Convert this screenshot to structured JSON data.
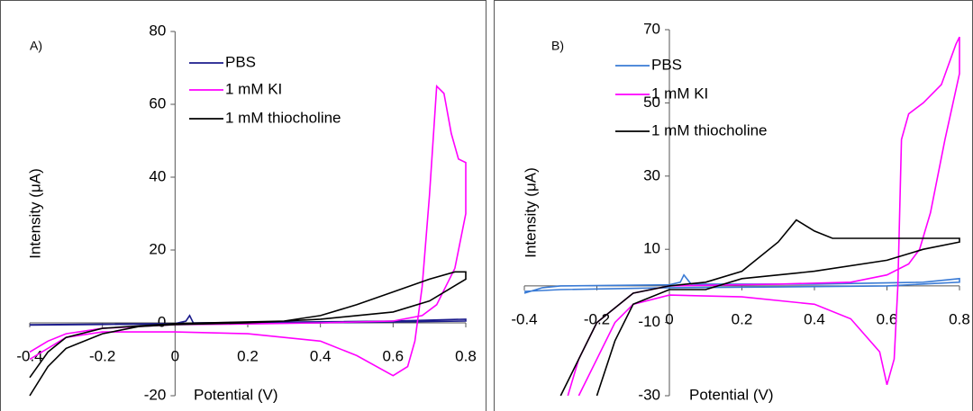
{
  "chart_data": [
    {
      "type": "line",
      "panel_label": "A)",
      "xlabel": "Potential (V)",
      "ylabel": "Intensity (μA)",
      "xlim": [
        -0.4,
        0.8
      ],
      "ylim": [
        -20,
        80
      ],
      "xticks": [
        -0.4,
        -0.2,
        0,
        0.2,
        0.4,
        0.6,
        0.8
      ],
      "yticks": [
        -20,
        0,
        20,
        40,
        60,
        80
      ],
      "series": [
        {
          "name": "PBS",
          "color": "#1c1c8c",
          "x": [
            -0.4,
            0,
            0.03,
            0.04,
            0.05,
            0.3,
            0.6,
            0.8,
            0.8,
            0.4,
            0,
            -0.4
          ],
          "values": [
            -0.5,
            -0.2,
            0.5,
            2,
            0,
            0.2,
            0.5,
            1,
            0.5,
            0,
            -0.3,
            -0.6
          ]
        },
        {
          "name": "1 mM KI",
          "color": "#ff00ff",
          "x": [
            -0.4,
            -0.3,
            -0.2,
            0,
            0.2,
            0.4,
            0.5,
            0.6,
            0.64,
            0.66,
            0.68,
            0.7,
            0.72,
            0.74,
            0.76,
            0.78,
            0.8,
            0.8,
            0.77,
            0.72,
            0.68,
            0.6,
            0.4,
            0.2,
            0,
            -0.2,
            -0.3,
            -0.35,
            -0.4
          ],
          "values": [
            -10,
            -4,
            -2.5,
            -2.5,
            -3,
            -5,
            -9,
            -14.5,
            -12,
            -5,
            10,
            35,
            65,
            63,
            52,
            45,
            44,
            30,
            15,
            5,
            2,
            0.5,
            0,
            -0.3,
            -0.5,
            -1.5,
            -3,
            -5,
            -8
          ]
        },
        {
          "name": "1 mM thiocholine",
          "color": "#000000",
          "x": [
            -0.4,
            -0.35,
            -0.3,
            -0.2,
            -0.1,
            0,
            0.2,
            0.3,
            0.4,
            0.5,
            0.6,
            0.7,
            0.77,
            0.8,
            0.8,
            0.75,
            0.7,
            0.6,
            0.5,
            0.4,
            0.3,
            0,
            -0.2,
            -0.3,
            -0.35,
            -0.4
          ],
          "values": [
            -20,
            -12,
            -7,
            -3,
            -1,
            -0.5,
            0,
            0.5,
            2,
            5,
            8.5,
            12,
            14,
            14,
            12,
            9,
            6,
            3,
            2,
            1,
            0.5,
            -0.2,
            -1.5,
            -4,
            -8,
            -15
          ]
        }
      ]
    },
    {
      "type": "line",
      "panel_label": "B)",
      "xlabel": "Potential (V)",
      "ylabel": "Intensity (μA)",
      "xlim": [
        -0.4,
        0.8
      ],
      "ylim": [
        -30,
        70
      ],
      "xticks": [
        -0.4,
        -0.2,
        0,
        0.2,
        0.4,
        0.6,
        0.8
      ],
      "yticks": [
        -30,
        -10,
        10,
        30,
        50,
        70
      ],
      "series": [
        {
          "name": "PBS",
          "color": "#3a7bd5",
          "x": [
            -0.4,
            -0.35,
            -0.3,
            0,
            0.03,
            0.04,
            0.06,
            0.4,
            0.7,
            0.8,
            0.8,
            0.6,
            0.3,
            0,
            -0.3,
            -0.4
          ],
          "values": [
            -2,
            -0.5,
            0,
            0.3,
            1,
            3,
            0.5,
            0.5,
            1,
            2,
            1,
            0,
            -0.3,
            -0.5,
            -1,
            -1.5
          ]
        },
        {
          "name": "1 mM KI",
          "color": "#ff00ff",
          "x": [
            -0.25,
            -0.2,
            -0.15,
            -0.1,
            0,
            0.2,
            0.4,
            0.5,
            0.58,
            0.6,
            0.62,
            0.63,
            0.64,
            0.66,
            0.7,
            0.75,
            0.79,
            0.8,
            0.8,
            0.76,
            0.72,
            0.69,
            0.66,
            0.6,
            0.5,
            0.3,
            0,
            -0.1,
            -0.2,
            -0.25,
            -0.28
          ],
          "values": [
            -30,
            -20,
            -10,
            -5,
            -2.5,
            -3,
            -5,
            -9,
            -18,
            -27,
            -20,
            0,
            40,
            47,
            50,
            55,
            66,
            68,
            58,
            40,
            20,
            10,
            6,
            3,
            1,
            0.5,
            0,
            -2,
            -10,
            -20,
            -30
          ]
        },
        {
          "name": "1 mM thiocholine",
          "color": "#000000",
          "x": [
            -0.3,
            -0.2,
            -0.1,
            0,
            0.1,
            0.2,
            0.3,
            0.35,
            0.4,
            0.45,
            0.6,
            0.8,
            0.8,
            0.7,
            0.6,
            0.4,
            0.2,
            0.1,
            0,
            -0.1,
            -0.15,
            -0.2
          ],
          "values": [
            -30,
            -10,
            -2,
            0,
            1,
            4,
            12,
            18,
            15,
            13,
            13,
            13,
            12,
            10,
            7,
            4,
            2,
            -1,
            -1,
            -5,
            -15,
            -30
          ]
        }
      ]
    }
  ]
}
